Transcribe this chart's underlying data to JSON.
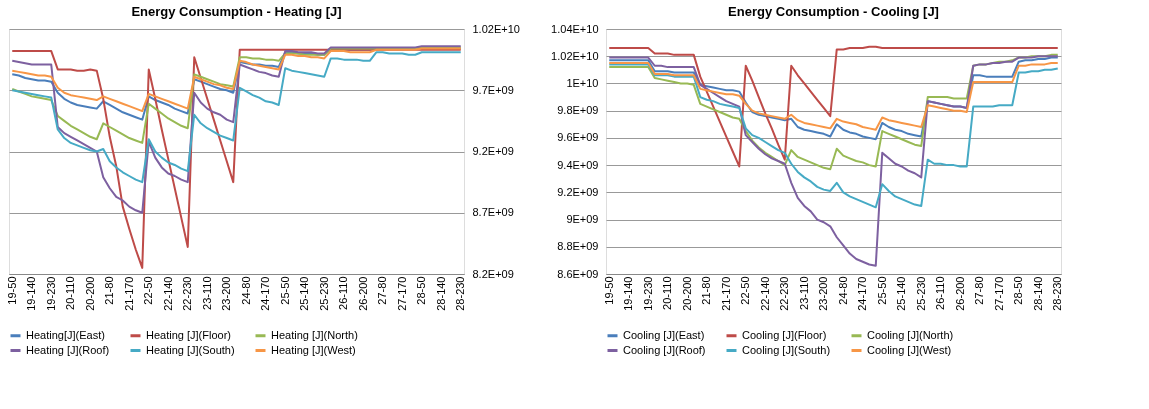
{
  "chart_data": [
    {
      "type": "line",
      "title": "Energy Consumption - Heating [J]",
      "categories": [
        "19-50",
        null,
        null,
        "19-140",
        null,
        null,
        "19-230",
        null,
        null,
        "20-110",
        null,
        null,
        "20-200",
        null,
        null,
        "21-80",
        null,
        null,
        "21-170",
        null,
        null,
        "22-50",
        null,
        null,
        "22-140",
        null,
        null,
        "22-230",
        null,
        null,
        "23-110",
        null,
        null,
        "23-200",
        null,
        null,
        "24-80",
        null,
        null,
        "24-170",
        null,
        null,
        "25-50",
        null,
        null,
        "25-140",
        null,
        null,
        "25-230",
        null,
        null,
        "26-110",
        null,
        null,
        "26-200",
        null,
        null,
        "27-80",
        null,
        null,
        "27-170",
        null,
        null,
        "28-50",
        null,
        null,
        "28-140",
        null,
        null,
        "28-230"
      ],
      "ylim": [
        8200000000.0,
        10200000000.0
      ],
      "yticks": [
        {
          "value": 8200000000.0,
          "label": "8.2E+09"
        },
        {
          "value": 8700000000.0,
          "label": "8.7E+09"
        },
        {
          "value": 9200000000.0,
          "label": "9.2E+09"
        },
        {
          "value": 9700000000.0,
          "label": "9.7E+09"
        },
        {
          "value": 10200000000.0,
          "label": "1.02E+10"
        }
      ],
      "grid": "y",
      "legend": "bottom",
      "series": [
        {
          "name": "Heating[J](East)",
          "color": "#4a7ebb",
          "values": [
            9830000000.0,
            9820000000.0,
            9800000000.0,
            9790000000.0,
            9780000000.0,
            9780000000.0,
            9770000000.0,
            9680000000.0,
            9630000000.0,
            9600000000.0,
            9580000000.0,
            9570000000.0,
            9560000000.0,
            9550000000.0,
            9610000000.0,
            9580000000.0,
            9550000000.0,
            9520000000.0,
            9500000000.0,
            9480000000.0,
            9460000000.0,
            9650000000.0,
            9620000000.0,
            9600000000.0,
            9580000000.0,
            9550000000.0,
            9530000000.0,
            9510000000.0,
            9790000000.0,
            9770000000.0,
            9750000000.0,
            9730000000.0,
            9710000000.0,
            9700000000.0,
            9680000000.0,
            9930000000.0,
            9920000000.0,
            9910000000.0,
            9910000000.0,
            9900000000.0,
            9900000000.0,
            9890000000.0,
            10010000000.0,
            10010000000.0,
            10000000000.0,
            10000000000.0,
            10000000000.0,
            9990000000.0,
            9990000000.0,
            10030000000.0,
            10030000000.0,
            10030000000.0,
            10030000000.0,
            10030000000.0,
            10030000000.0,
            10030000000.0,
            10040000000.0,
            10040000000.0,
            10040000000.0,
            10040000000.0,
            10040000000.0,
            10040000000.0,
            10040000000.0,
            10040000000.0,
            10040000000.0,
            10040000000.0,
            10040000000.0,
            10040000000.0,
            10040000000.0,
            10040000000.0
          ]
        },
        {
          "name": "Heating [J](Floor)",
          "color": "#be4b48",
          "values": [
            10020000000.0,
            10020000000.0,
            10020000000.0,
            10020000000.0,
            10020000000.0,
            10020000000.0,
            10020000000.0,
            9870000000.0,
            9870000000.0,
            9870000000.0,
            9860000000.0,
            9860000000.0,
            9870000000.0,
            9860000000.0,
            9630000000.0,
            9320000000.0,
            9080000000.0,
            8750000000.0,
            8570000000.0,
            8400000000.0,
            8250000000.0,
            9870000000.0,
            9630000000.0,
            9380000000.0,
            9140000000.0,
            8900000000.0,
            8660000000.0,
            8420000000.0,
            9970000000.0,
            9800000000.0,
            9630000000.0,
            9460000000.0,
            9290000000.0,
            9120000000.0,
            8950000000.0,
            10030000000.0,
            10030000000.0,
            10030000000.0,
            10030000000.0,
            10030000000.0,
            10030000000.0,
            10030000000.0,
            10030000000.0,
            10030000000.0,
            10030000000.0,
            10030000000.0,
            10030000000.0,
            10030000000.0,
            10030000000.0,
            10030000000.0,
            10030000000.0,
            10030000000.0,
            10030000000.0,
            10030000000.0,
            10030000000.0,
            10030000000.0,
            10030000000.0,
            10030000000.0,
            10030000000.0,
            10030000000.0,
            10030000000.0,
            10030000000.0,
            10030000000.0,
            10030000000.0,
            10030000000.0,
            10030000000.0,
            10030000000.0,
            10030000000.0,
            10030000000.0,
            10030000000.0
          ]
        },
        {
          "name": "Heating [J](North)",
          "color": "#98b954",
          "values": [
            9710000000.0,
            9690000000.0,
            9670000000.0,
            9650000000.0,
            9640000000.0,
            9630000000.0,
            9620000000.0,
            9490000000.0,
            9450000000.0,
            9410000000.0,
            9380000000.0,
            9350000000.0,
            9320000000.0,
            9300000000.0,
            9430000000.0,
            9400000000.0,
            9370000000.0,
            9340000000.0,
            9310000000.0,
            9290000000.0,
            9270000000.0,
            9590000000.0,
            9550000000.0,
            9510000000.0,
            9470000000.0,
            9440000000.0,
            9410000000.0,
            9390000000.0,
            9830000000.0,
            9810000000.0,
            9790000000.0,
            9770000000.0,
            9750000000.0,
            9740000000.0,
            9730000000.0,
            9970000000.0,
            9970000000.0,
            9960000000.0,
            9960000000.0,
            9950000000.0,
            9950000000.0,
            9940000000.0,
            10000000000.0,
            10000000000.0,
            10000000000.0,
            9990000000.0,
            9990000000.0,
            9990000000.0,
            9990000000.0,
            10040000000.0,
            10040000000.0,
            10040000000.0,
            10040000000.0,
            10040000000.0,
            10040000000.0,
            10040000000.0,
            10040000000.0,
            10040000000.0,
            10040000000.0,
            10040000000.0,
            10040000000.0,
            10040000000.0,
            10040000000.0,
            10050000000.0,
            10050000000.0,
            10050000000.0,
            10050000000.0,
            10050000000.0,
            10050000000.0,
            10050000000.0
          ]
        },
        {
          "name": "Heating [J](Roof)",
          "color": "#7d60a0",
          "values": [
            9940000000.0,
            9930000000.0,
            9920000000.0,
            9910000000.0,
            9910000000.0,
            9910000000.0,
            9910000000.0,
            9400000000.0,
            9350000000.0,
            9320000000.0,
            9290000000.0,
            9260000000.0,
            9230000000.0,
            9200000000.0,
            8990000000.0,
            8900000000.0,
            8830000000.0,
            8800000000.0,
            8750000000.0,
            8720000000.0,
            8700000000.0,
            9280000000.0,
            9150000000.0,
            9070000000.0,
            9020000000.0,
            9000000000.0,
            8970000000.0,
            8950000000.0,
            9680000000.0,
            9600000000.0,
            9550000000.0,
            9520000000.0,
            9500000000.0,
            9460000000.0,
            9440000000.0,
            9910000000.0,
            9890000000.0,
            9870000000.0,
            9850000000.0,
            9840000000.0,
            9820000000.0,
            9810000000.0,
            10020000000.0,
            10020000000.0,
            10010000000.0,
            10010000000.0,
            10010000000.0,
            10000000000.0,
            10000000000.0,
            10050000000.0,
            10050000000.0,
            10050000000.0,
            10050000000.0,
            10050000000.0,
            10050000000.0,
            10050000000.0,
            10050000000.0,
            10050000000.0,
            10050000000.0,
            10050000000.0,
            10050000000.0,
            10050000000.0,
            10050000000.0,
            10060000000.0,
            10060000000.0,
            10060000000.0,
            10060000000.0,
            10060000000.0,
            10060000000.0,
            10060000000.0
          ]
        },
        {
          "name": "Heating [J](South)",
          "color": "#46aac5",
          "values": [
            9700000000.0,
            9690000000.0,
            9680000000.0,
            9670000000.0,
            9660000000.0,
            9650000000.0,
            9640000000.0,
            9380000000.0,
            9310000000.0,
            9270000000.0,
            9250000000.0,
            9230000000.0,
            9210000000.0,
            9200000000.0,
            9220000000.0,
            9120000000.0,
            9070000000.0,
            9030000000.0,
            9000000000.0,
            8970000000.0,
            8950000000.0,
            9300000000.0,
            9200000000.0,
            9150000000.0,
            9110000000.0,
            9090000000.0,
            9060000000.0,
            9040000000.0,
            9500000000.0,
            9430000000.0,
            9390000000.0,
            9360000000.0,
            9330000000.0,
            9310000000.0,
            9290000000.0,
            9720000000.0,
            9690000000.0,
            9660000000.0,
            9640000000.0,
            9610000000.0,
            9600000000.0,
            9580000000.0,
            9880000000.0,
            9860000000.0,
            9850000000.0,
            9840000000.0,
            9830000000.0,
            9820000000.0,
            9810000000.0,
            9960000000.0,
            9960000000.0,
            9950000000.0,
            9950000000.0,
            9950000000.0,
            9940000000.0,
            9940000000.0,
            10010000000.0,
            10010000000.0,
            10000000000.0,
            10000000000.0,
            10000000000.0,
            9990000000.0,
            9990000000.0,
            10010000000.0,
            10010000000.0,
            10010000000.0,
            10010000000.0,
            10010000000.0,
            10010000000.0,
            10010000000.0
          ]
        },
        {
          "name": "Heating [J](West)",
          "color": "#f79646",
          "values": [
            9860000000.0,
            9850000000.0,
            9840000000.0,
            9830000000.0,
            9820000000.0,
            9820000000.0,
            9810000000.0,
            9720000000.0,
            9680000000.0,
            9660000000.0,
            9650000000.0,
            9640000000.0,
            9630000000.0,
            9620000000.0,
            9650000000.0,
            9630000000.0,
            9610000000.0,
            9590000000.0,
            9570000000.0,
            9550000000.0,
            9530000000.0,
            9670000000.0,
            9650000000.0,
            9630000000.0,
            9610000000.0,
            9590000000.0,
            9570000000.0,
            9550000000.0,
            9810000000.0,
            9790000000.0,
            9770000000.0,
            9750000000.0,
            9740000000.0,
            9720000000.0,
            9710000000.0,
            9940000000.0,
            9930000000.0,
            9910000000.0,
            9900000000.0,
            9890000000.0,
            9880000000.0,
            9870000000.0,
            9990000000.0,
            9990000000.0,
            9980000000.0,
            9980000000.0,
            9970000000.0,
            9970000000.0,
            9960000000.0,
            10020000000.0,
            10020000000.0,
            10020000000.0,
            10010000000.0,
            10010000000.0,
            10010000000.0,
            10010000000.0,
            10030000000.0,
            10030000000.0,
            10030000000.0,
            10030000000.0,
            10030000000.0,
            10030000000.0,
            10030000000.0,
            10040000000.0,
            10040000000.0,
            10040000000.0,
            10040000000.0,
            10040000000.0,
            10040000000.0,
            10040000000.0
          ]
        }
      ]
    },
    {
      "type": "line",
      "title": "Energy Consumption - Cooling [J]",
      "categories": [
        "19-50",
        null,
        null,
        "19-140",
        null,
        null,
        "19-230",
        null,
        null,
        "20-110",
        null,
        null,
        "20-200",
        null,
        null,
        "21-80",
        null,
        null,
        "21-170",
        null,
        null,
        "22-50",
        null,
        null,
        "22-140",
        null,
        null,
        "22-230",
        null,
        null,
        "23-110",
        null,
        null,
        "23-200",
        null,
        null,
        "24-80",
        null,
        null,
        "24-170",
        null,
        null,
        "25-50",
        null,
        null,
        "25-140",
        null,
        null,
        "25-230",
        null,
        null,
        "26-110",
        null,
        null,
        "26-200",
        null,
        null,
        "27-80",
        null,
        null,
        "27-170",
        null,
        null,
        "28-50",
        null,
        null,
        "28-140",
        null,
        null,
        "28-230"
      ],
      "ylim": [
        8600000000.0,
        10400000000.0
      ],
      "yticks": [
        {
          "value": 8600000000.0,
          "label": "8.6E+09"
        },
        {
          "value": 8800000000.0,
          "label": "8.8E+09"
        },
        {
          "value": 9000000000.0,
          "label": "9E+09"
        },
        {
          "value": 9200000000.0,
          "label": "9.2E+09"
        },
        {
          "value": 9400000000.0,
          "label": "9.4E+09"
        },
        {
          "value": 9600000000.0,
          "label": "9.6E+09"
        },
        {
          "value": 9800000000.0,
          "label": "9.8E+09"
        },
        {
          "value": 10000000000.0,
          "label": "1E+10"
        },
        {
          "value": 10200000000.0,
          "label": "1.02E+10"
        },
        {
          "value": 10400000000.0,
          "label": "1.04E+10"
        }
      ],
      "grid": "y",
      "legend": "bottom",
      "series": [
        {
          "name": "Cooling [J](East)",
          "color": "#4a7ebb",
          "values": [
            10170000000.0,
            10170000000.0,
            10170000000.0,
            10170000000.0,
            10170000000.0,
            10170000000.0,
            10170000000.0,
            10090000000.0,
            10090000000.0,
            10090000000.0,
            10080000000.0,
            10080000000.0,
            10080000000.0,
            10080000000.0,
            9990000000.0,
            9980000000.0,
            9970000000.0,
            9960000000.0,
            9950000000.0,
            9950000000.0,
            9940000000.0,
            9860000000.0,
            9790000000.0,
            9770000000.0,
            9760000000.0,
            9750000000.0,
            9740000000.0,
            9730000000.0,
            9740000000.0,
            9680000000.0,
            9660000000.0,
            9650000000.0,
            9640000000.0,
            9630000000.0,
            9610000000.0,
            9700000000.0,
            9660000000.0,
            9640000000.0,
            9630000000.0,
            9610000000.0,
            9600000000.0,
            9590000000.0,
            9710000000.0,
            9680000000.0,
            9660000000.0,
            9650000000.0,
            9630000000.0,
            9620000000.0,
            9610000000.0,
            9870000000.0,
            9860000000.0,
            9850000000.0,
            9840000000.0,
            9830000000.0,
            9830000000.0,
            9820000000.0,
            10060000000.0,
            10060000000.0,
            10050000000.0,
            10050000000.0,
            10050000000.0,
            10050000000.0,
            10050000000.0,
            10160000000.0,
            10170000000.0,
            10170000000.0,
            10180000000.0,
            10180000000.0,
            10190000000.0,
            10190000000.0
          ]
        },
        {
          "name": "Cooling [J](Floor)",
          "color": "#be4b48",
          "values": [
            10260000000.0,
            10260000000.0,
            10260000000.0,
            10260000000.0,
            10260000000.0,
            10260000000.0,
            10260000000.0,
            10220000000.0,
            10220000000.0,
            10220000000.0,
            10210000000.0,
            10210000000.0,
            10210000000.0,
            10210000000.0,
            10050000000.0,
            9940000000.0,
            9830000000.0,
            9720000000.0,
            9610000000.0,
            9500000000.0,
            9390000000.0,
            10130000000.0,
            10020000000.0,
            9900000000.0,
            9780000000.0,
            9670000000.0,
            9550000000.0,
            9440000000.0,
            10130000000.0,
            10060000000.0,
            10000000000.0,
            9940000000.0,
            9880000000.0,
            9820000000.0,
            9760000000.0,
            10250000000.0,
            10250000000.0,
            10260000000.0,
            10260000000.0,
            10260000000.0,
            10270000000.0,
            10270000000.0,
            10260000000.0,
            10260000000.0,
            10260000000.0,
            10260000000.0,
            10260000000.0,
            10260000000.0,
            10260000000.0,
            10260000000.0,
            10260000000.0,
            10260000000.0,
            10260000000.0,
            10260000000.0,
            10260000000.0,
            10260000000.0,
            10260000000.0,
            10260000000.0,
            10260000000.0,
            10260000000.0,
            10260000000.0,
            10260000000.0,
            10260000000.0,
            10260000000.0,
            10260000000.0,
            10260000000.0,
            10260000000.0,
            10260000000.0,
            10260000000.0,
            10260000000.0
          ]
        },
        {
          "name": "Cooling [J](North)",
          "color": "#98b954",
          "values": [
            10120000000.0,
            10120000000.0,
            10120000000.0,
            10120000000.0,
            10120000000.0,
            10120000000.0,
            10120000000.0,
            10040000000.0,
            10030000000.0,
            10020000000.0,
            10010000000.0,
            10000000000.0,
            10000000000.0,
            9990000000.0,
            9850000000.0,
            9830000000.0,
            9810000000.0,
            9790000000.0,
            9770000000.0,
            9750000000.0,
            9740000000.0,
            9650000000.0,
            9580000000.0,
            9530000000.0,
            9490000000.0,
            9460000000.0,
            9430000000.0,
            9400000000.0,
            9510000000.0,
            9460000000.0,
            9440000000.0,
            9420000000.0,
            9400000000.0,
            9380000000.0,
            9370000000.0,
            9520000000.0,
            9470000000.0,
            9450000000.0,
            9430000000.0,
            9420000000.0,
            9400000000.0,
            9390000000.0,
            9650000000.0,
            9630000000.0,
            9610000000.0,
            9590000000.0,
            9570000000.0,
            9550000000.0,
            9540000000.0,
            9900000000.0,
            9900000000.0,
            9900000000.0,
            9900000000.0,
            9890000000.0,
            9890000000.0,
            9890000000.0,
            10130000000.0,
            10140000000.0,
            10140000000.0,
            10150000000.0,
            10160000000.0,
            10160000000.0,
            10170000000.0,
            10190000000.0,
            10190000000.0,
            10200000000.0,
            10200000000.0,
            10200000000.0,
            10210000000.0,
            10210000000.0
          ]
        },
        {
          "name": "Cooling [J](Roof)",
          "color": "#7d60a0",
          "values": [
            10190000000.0,
            10190000000.0,
            10190000000.0,
            10190000000.0,
            10190000000.0,
            10190000000.0,
            10190000000.0,
            10130000000.0,
            10130000000.0,
            10120000000.0,
            10120000000.0,
            10120000000.0,
            10120000000.0,
            10120000000.0,
            9990000000.0,
            9960000000.0,
            9930000000.0,
            9900000000.0,
            9870000000.0,
            9850000000.0,
            9830000000.0,
            9620000000.0,
            9570000000.0,
            9520000000.0,
            9480000000.0,
            9450000000.0,
            9430000000.0,
            9410000000.0,
            9270000000.0,
            9160000000.0,
            9100000000.0,
            9060000000.0,
            9000000000.0,
            8980000000.0,
            8950000000.0,
            8870000000.0,
            8810000000.0,
            8750000000.0,
            8710000000.0,
            8690000000.0,
            8670000000.0,
            8660000000.0,
            9490000000.0,
            9450000000.0,
            9410000000.0,
            9390000000.0,
            9360000000.0,
            9340000000.0,
            9310000000.0,
            9870000000.0,
            9860000000.0,
            9850000000.0,
            9840000000.0,
            9830000000.0,
            9830000000.0,
            9820000000.0,
            10130000000.0,
            10140000000.0,
            10140000000.0,
            10150000000.0,
            10150000000.0,
            10160000000.0,
            10160000000.0,
            10190000000.0,
            10190000000.0,
            10190000000.0,
            10200000000.0,
            10200000000.0,
            10200000000.0,
            10200000000.0
          ]
        },
        {
          "name": "Cooling [J](South)",
          "color": "#46aac5",
          "values": [
            10140000000.0,
            10140000000.0,
            10140000000.0,
            10140000000.0,
            10140000000.0,
            10140000000.0,
            10140000000.0,
            10060000000.0,
            10060000000.0,
            10060000000.0,
            10050000000.0,
            10050000000.0,
            10050000000.0,
            10050000000.0,
            9900000000.0,
            9880000000.0,
            9870000000.0,
            9850000000.0,
            9840000000.0,
            9830000000.0,
            9820000000.0,
            9670000000.0,
            9620000000.0,
            9600000000.0,
            9570000000.0,
            9540000000.0,
            9510000000.0,
            9490000000.0,
            9410000000.0,
            9350000000.0,
            9310000000.0,
            9280000000.0,
            9240000000.0,
            9220000000.0,
            9210000000.0,
            9270000000.0,
            9200000000.0,
            9170000000.0,
            9150000000.0,
            9130000000.0,
            9110000000.0,
            9090000000.0,
            9260000000.0,
            9210000000.0,
            9170000000.0,
            9150000000.0,
            9130000000.0,
            9110000000.0,
            9100000000.0,
            9440000000.0,
            9410000000.0,
            9410000000.0,
            9400000000.0,
            9400000000.0,
            9390000000.0,
            9390000000.0,
            9830000000.0,
            9830000000.0,
            9830000000.0,
            9830000000.0,
            9840000000.0,
            9840000000.0,
            9840000000.0,
            10080000000.0,
            10080000000.0,
            10090000000.0,
            10090000000.0,
            10100000000.0,
            10100000000.0,
            10110000000.0
          ]
        },
        {
          "name": "Cooling [J](West)",
          "color": "#f79646",
          "values": [
            10150000000.0,
            10150000000.0,
            10150000000.0,
            10150000000.0,
            10150000000.0,
            10150000000.0,
            10150000000.0,
            10070000000.0,
            10070000000.0,
            10070000000.0,
            10060000000.0,
            10060000000.0,
            10060000000.0,
            10060000000.0,
            9960000000.0,
            9950000000.0,
            9940000000.0,
            9930000000.0,
            9920000000.0,
            9920000000.0,
            9910000000.0,
            9850000000.0,
            9800000000.0,
            9780000000.0,
            9770000000.0,
            9760000000.0,
            9750000000.0,
            9740000000.0,
            9770000000.0,
            9730000000.0,
            9710000000.0,
            9700000000.0,
            9690000000.0,
            9680000000.0,
            9670000000.0,
            9740000000.0,
            9720000000.0,
            9710000000.0,
            9700000000.0,
            9680000000.0,
            9670000000.0,
            9660000000.0,
            9750000000.0,
            9730000000.0,
            9720000000.0,
            9710000000.0,
            9700000000.0,
            9690000000.0,
            9680000000.0,
            9840000000.0,
            9830000000.0,
            9820000000.0,
            9810000000.0,
            9800000000.0,
            9800000000.0,
            9790000000.0,
            10010000000.0,
            10010000000.0,
            10010000000.0,
            10010000000.0,
            10010000000.0,
            10010000000.0,
            10010000000.0,
            10130000000.0,
            10130000000.0,
            10140000000.0,
            10140000000.0,
            10140000000.0,
            10150000000.0,
            10150000000.0
          ]
        }
      ]
    }
  ]
}
